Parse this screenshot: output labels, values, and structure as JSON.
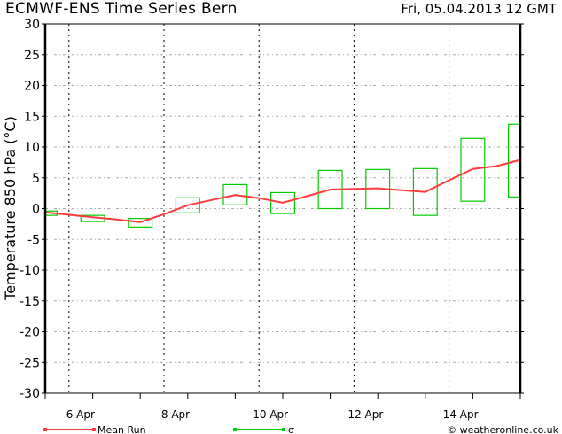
{
  "header": {
    "title": "ECMWF-ENS Time Series Bern",
    "date": "Fri, 05.04.2013 12 GMT"
  },
  "footer": {
    "credit": "© weatheronline.co.uk"
  },
  "chart_data": {
    "type": "line",
    "title": "ECMWF-ENS Time Series Bern",
    "ylabel": "Temperature 850 hPa (°C)",
    "xlabel": "",
    "ylim": [
      -30,
      30
    ],
    "yticks": [
      30,
      25,
      20,
      15,
      10,
      5,
      0,
      -5,
      -10,
      -15,
      -20,
      -25,
      -30
    ],
    "xlim": [
      "2013-04-05 12:00",
      "2013-04-15 12:00"
    ],
    "xtick_labels": [
      "6 Apr",
      "8 Apr",
      "10 Apr",
      "12 Apr",
      "14 Apr"
    ],
    "grid": true,
    "legend_position": "bottom",
    "colors": {
      "mean_run": "#ff3c3c",
      "sigma": "#00cc00",
      "grid": "#aaaaaa"
    },
    "series": [
      {
        "name": "Mean Run",
        "type": "line",
        "x": [
          "2013-04-05 12:00",
          "2013-04-06 00:00",
          "2013-04-06 12:00",
          "2013-04-07 00:00",
          "2013-04-07 12:00",
          "2013-04-08 00:00",
          "2013-04-08 12:00",
          "2013-04-09 00:00",
          "2013-04-09 12:00",
          "2013-04-10 00:00",
          "2013-04-10 12:00",
          "2013-04-11 00:00",
          "2013-04-11 12:00",
          "2013-04-12 00:00",
          "2013-04-12 12:00",
          "2013-04-13 00:00",
          "2013-04-13 12:00",
          "2013-04-14 00:00",
          "2013-04-14 12:00",
          "2013-04-15 00:00",
          "2013-04-15 12:00"
        ],
        "y": [
          -0.6,
          -1.0,
          -1.4,
          -1.75,
          -2.2,
          -0.9,
          0.55,
          1.4,
          2.2,
          1.7,
          0.95,
          2.0,
          3.1,
          3.2,
          3.3,
          3.0,
          2.7,
          4.6,
          6.45,
          6.9,
          7.9
        ]
      },
      {
        "name": "σ",
        "type": "box",
        "x": [
          "2013-04-05 12:00",
          "2013-04-06 12:00",
          "2013-04-07 12:00",
          "2013-04-08 12:00",
          "2013-04-09 12:00",
          "2013-04-10 12:00",
          "2013-04-11 12:00",
          "2013-04-12 12:00",
          "2013-04-13 12:00",
          "2013-04-14 12:00",
          "2013-04-15 12:00"
        ],
        "high": [
          -0.4,
          -1.1,
          -1.6,
          1.75,
          3.9,
          2.6,
          6.2,
          6.35,
          6.5,
          11.4,
          13.7
        ],
        "low": [
          -1.1,
          -2.1,
          -3.0,
          -0.7,
          0.6,
          -0.8,
          0.0,
          0.0,
          -1.1,
          1.2,
          1.9
        ]
      }
    ]
  }
}
